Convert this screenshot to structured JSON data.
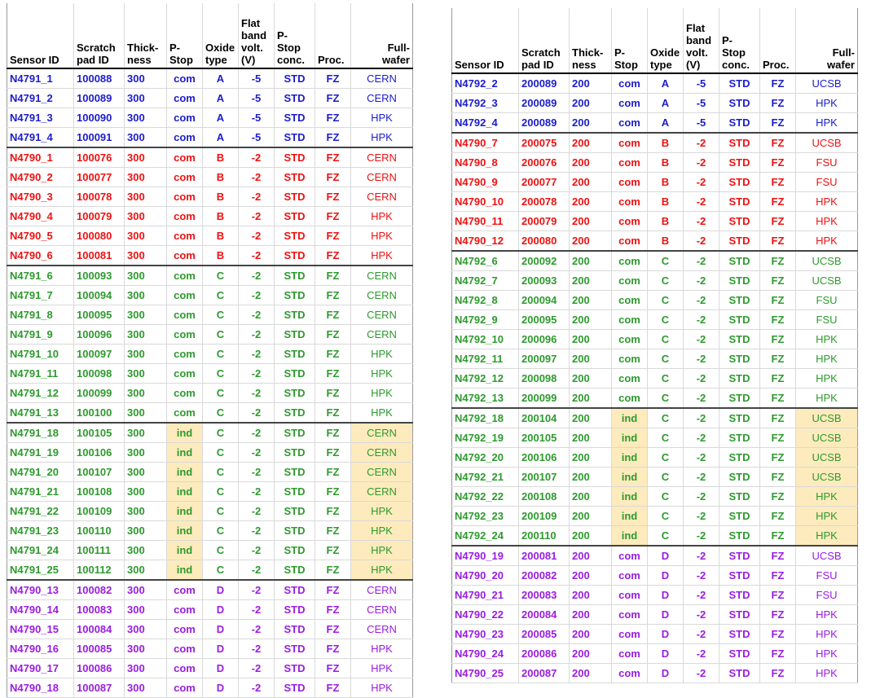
{
  "columns": [
    "Sensor ID",
    "Scratch\npad ID",
    "Thick-\nness",
    "P-\nStop",
    "Oxide\ntype",
    "Flat\nband\nvolt.\n(V)",
    "P-\nStop\nconc.",
    "Proc.",
    "Full-\nwafer"
  ],
  "colors": {
    "blue": "#1c1ccc",
    "red": "#ee1111",
    "green": "#2e9a2e",
    "purple": "#9a1de0",
    "highlight": "#fdebbd"
  },
  "tables": [
    {
      "rows": [
        {
          "g": "blue",
          "start": false,
          "hl": false,
          "c": [
            "N4791_1",
            "100088",
            "300",
            "com",
            "A",
            "-5",
            "STD",
            "FZ",
            "CERN"
          ]
        },
        {
          "g": "blue",
          "start": false,
          "hl": false,
          "c": [
            "N4791_2",
            "100089",
            "300",
            "com",
            "A",
            "-5",
            "STD",
            "FZ",
            "CERN"
          ]
        },
        {
          "g": "blue",
          "start": false,
          "hl": false,
          "c": [
            "N4791_3",
            "100090",
            "300",
            "com",
            "A",
            "-5",
            "STD",
            "FZ",
            "HPK"
          ]
        },
        {
          "g": "blue",
          "start": false,
          "hl": false,
          "c": [
            "N4791_4",
            "100091",
            "300",
            "com",
            "A",
            "-5",
            "STD",
            "FZ",
            "HPK"
          ]
        },
        {
          "g": "red",
          "start": true,
          "hl": false,
          "c": [
            "N4790_1",
            "100076",
            "300",
            "com",
            "B",
            "-2",
            "STD",
            "FZ",
            "CERN"
          ]
        },
        {
          "g": "red",
          "start": false,
          "hl": false,
          "c": [
            "N4790_2",
            "100077",
            "300",
            "com",
            "B",
            "-2",
            "STD",
            "FZ",
            "CERN"
          ]
        },
        {
          "g": "red",
          "start": false,
          "hl": false,
          "c": [
            "N4790_3",
            "100078",
            "300",
            "com",
            "B",
            "-2",
            "STD",
            "FZ",
            "CERN"
          ]
        },
        {
          "g": "red",
          "start": false,
          "hl": false,
          "c": [
            "N4790_4",
            "100079",
            "300",
            "com",
            "B",
            "-2",
            "STD",
            "FZ",
            "HPK"
          ]
        },
        {
          "g": "red",
          "start": false,
          "hl": false,
          "c": [
            "N4790_5",
            "100080",
            "300",
            "com",
            "B",
            "-2",
            "STD",
            "FZ",
            "HPK"
          ]
        },
        {
          "g": "red",
          "start": false,
          "hl": false,
          "c": [
            "N4790_6",
            "100081",
            "300",
            "com",
            "B",
            "-2",
            "STD",
            "FZ",
            "HPK"
          ]
        },
        {
          "g": "green",
          "start": true,
          "hl": false,
          "c": [
            "N4791_6",
            "100093",
            "300",
            "com",
            "C",
            "-2",
            "STD",
            "FZ",
            "CERN"
          ]
        },
        {
          "g": "green",
          "start": false,
          "hl": false,
          "c": [
            "N4791_7",
            "100094",
            "300",
            "com",
            "C",
            "-2",
            "STD",
            "FZ",
            "CERN"
          ]
        },
        {
          "g": "green",
          "start": false,
          "hl": false,
          "c": [
            "N4791_8",
            "100095",
            "300",
            "com",
            "C",
            "-2",
            "STD",
            "FZ",
            "CERN"
          ]
        },
        {
          "g": "green",
          "start": false,
          "hl": false,
          "c": [
            "N4791_9",
            "100096",
            "300",
            "com",
            "C",
            "-2",
            "STD",
            "FZ",
            "CERN"
          ]
        },
        {
          "g": "green",
          "start": false,
          "hl": false,
          "c": [
            "N4791_10",
            "100097",
            "300",
            "com",
            "C",
            "-2",
            "STD",
            "FZ",
            "HPK"
          ]
        },
        {
          "g": "green",
          "start": false,
          "hl": false,
          "c": [
            "N4791_11",
            "100098",
            "300",
            "com",
            "C",
            "-2",
            "STD",
            "FZ",
            "HPK"
          ]
        },
        {
          "g": "green",
          "start": false,
          "hl": false,
          "c": [
            "N4791_12",
            "100099",
            "300",
            "com",
            "C",
            "-2",
            "STD",
            "FZ",
            "HPK"
          ]
        },
        {
          "g": "green",
          "start": false,
          "hl": false,
          "c": [
            "N4791_13",
            "100100",
            "300",
            "com",
            "C",
            "-2",
            "STD",
            "FZ",
            "HPK"
          ]
        },
        {
          "g": "green",
          "start": true,
          "hl": true,
          "c": [
            "N4791_18",
            "100105",
            "300",
            "ind",
            "C",
            "-2",
            "STD",
            "FZ",
            "CERN"
          ]
        },
        {
          "g": "green",
          "start": false,
          "hl": true,
          "c": [
            "N4791_19",
            "100106",
            "300",
            "ind",
            "C",
            "-2",
            "STD",
            "FZ",
            "CERN"
          ]
        },
        {
          "g": "green",
          "start": false,
          "hl": true,
          "c": [
            "N4791_20",
            "100107",
            "300",
            "ind",
            "C",
            "-2",
            "STD",
            "FZ",
            "CERN"
          ]
        },
        {
          "g": "green",
          "start": false,
          "hl": true,
          "c": [
            "N4791_21",
            "100108",
            "300",
            "ind",
            "C",
            "-2",
            "STD",
            "FZ",
            "CERN"
          ]
        },
        {
          "g": "green",
          "start": false,
          "hl": true,
          "c": [
            "N4791_22",
            "100109",
            "300",
            "ind",
            "C",
            "-2",
            "STD",
            "FZ",
            "HPK"
          ]
        },
        {
          "g": "green",
          "start": false,
          "hl": true,
          "c": [
            "N4791_23",
            "100110",
            "300",
            "ind",
            "C",
            "-2",
            "STD",
            "FZ",
            "HPK"
          ]
        },
        {
          "g": "green",
          "start": false,
          "hl": true,
          "c": [
            "N4791_24",
            "100111",
            "300",
            "ind",
            "C",
            "-2",
            "STD",
            "FZ",
            "HPK"
          ]
        },
        {
          "g": "green",
          "start": false,
          "hl": true,
          "c": [
            "N4791_25",
            "100112",
            "300",
            "ind",
            "C",
            "-2",
            "STD",
            "FZ",
            "HPK"
          ]
        },
        {
          "g": "purple",
          "start": true,
          "hl": false,
          "c": [
            "N4790_13",
            "100082",
            "300",
            "com",
            "D",
            "-2",
            "STD",
            "FZ",
            "CERN"
          ]
        },
        {
          "g": "purple",
          "start": false,
          "hl": false,
          "c": [
            "N4790_14",
            "100083",
            "300",
            "com",
            "D",
            "-2",
            "STD",
            "FZ",
            "CERN"
          ]
        },
        {
          "g": "purple",
          "start": false,
          "hl": false,
          "c": [
            "N4790_15",
            "100084",
            "300",
            "com",
            "D",
            "-2",
            "STD",
            "FZ",
            "CERN"
          ]
        },
        {
          "g": "purple",
          "start": false,
          "hl": false,
          "c": [
            "N4790_16",
            "100085",
            "300",
            "com",
            "D",
            "-2",
            "STD",
            "FZ",
            "HPK"
          ]
        },
        {
          "g": "purple",
          "start": false,
          "hl": false,
          "c": [
            "N4790_17",
            "100086",
            "300",
            "com",
            "D",
            "-2",
            "STD",
            "FZ",
            "HPK"
          ]
        },
        {
          "g": "purple",
          "start": false,
          "hl": false,
          "c": [
            "N4790_18",
            "100087",
            "300",
            "com",
            "D",
            "-2",
            "STD",
            "FZ",
            "HPK"
          ]
        }
      ]
    },
    {
      "rows": [
        {
          "g": "blue",
          "start": false,
          "hl": false,
          "c": [
            "N4792_2",
            "200089",
            "200",
            "com",
            "A",
            "-5",
            "STD",
            "FZ",
            "UCSB"
          ]
        },
        {
          "g": "blue",
          "start": false,
          "hl": false,
          "c": [
            "N4792_3",
            "200089",
            "200",
            "com",
            "A",
            "-5",
            "STD",
            "FZ",
            "HPK"
          ]
        },
        {
          "g": "blue",
          "start": false,
          "hl": false,
          "c": [
            "N4792_4",
            "200089",
            "200",
            "com",
            "A",
            "-5",
            "STD",
            "FZ",
            "HPK"
          ]
        },
        {
          "g": "red",
          "start": true,
          "hl": false,
          "c": [
            "N4790_7",
            "200075",
            "200",
            "com",
            "B",
            "-2",
            "STD",
            "FZ",
            "UCSB"
          ]
        },
        {
          "g": "red",
          "start": false,
          "hl": false,
          "c": [
            "N4790_8",
            "200076",
            "200",
            "com",
            "B",
            "-2",
            "STD",
            "FZ",
            "FSU"
          ]
        },
        {
          "g": "red",
          "start": false,
          "hl": false,
          "c": [
            "N4790_9",
            "200077",
            "200",
            "com",
            "B",
            "-2",
            "STD",
            "FZ",
            "FSU"
          ]
        },
        {
          "g": "red",
          "start": false,
          "hl": false,
          "c": [
            "N4790_10",
            "200078",
            "200",
            "com",
            "B",
            "-2",
            "STD",
            "FZ",
            "HPK"
          ]
        },
        {
          "g": "red",
          "start": false,
          "hl": false,
          "c": [
            "N4790_11",
            "200079",
            "200",
            "com",
            "B",
            "-2",
            "STD",
            "FZ",
            "HPK"
          ]
        },
        {
          "g": "red",
          "start": false,
          "hl": false,
          "c": [
            "N4790_12",
            "200080",
            "200",
            "com",
            "B",
            "-2",
            "STD",
            "FZ",
            "HPK"
          ]
        },
        {
          "g": "green",
          "start": true,
          "hl": false,
          "c": [
            "N4792_6",
            "200092",
            "200",
            "com",
            "C",
            "-2",
            "STD",
            "FZ",
            "UCSB"
          ]
        },
        {
          "g": "green",
          "start": false,
          "hl": false,
          "c": [
            "N4792_7",
            "200093",
            "200",
            "com",
            "C",
            "-2",
            "STD",
            "FZ",
            "UCSB"
          ]
        },
        {
          "g": "green",
          "start": false,
          "hl": false,
          "c": [
            "N4792_8",
            "200094",
            "200",
            "com",
            "C",
            "-2",
            "STD",
            "FZ",
            "FSU"
          ]
        },
        {
          "g": "green",
          "start": false,
          "hl": false,
          "c": [
            "N4792_9",
            "200095",
            "200",
            "com",
            "C",
            "-2",
            "STD",
            "FZ",
            "FSU"
          ]
        },
        {
          "g": "green",
          "start": false,
          "hl": false,
          "c": [
            "N4792_10",
            "200096",
            "200",
            "com",
            "C",
            "-2",
            "STD",
            "FZ",
            "HPK"
          ]
        },
        {
          "g": "green",
          "start": false,
          "hl": false,
          "c": [
            "N4792_11",
            "200097",
            "200",
            "com",
            "C",
            "-2",
            "STD",
            "FZ",
            "HPK"
          ]
        },
        {
          "g": "green",
          "start": false,
          "hl": false,
          "c": [
            "N4792_12",
            "200098",
            "200",
            "com",
            "C",
            "-2",
            "STD",
            "FZ",
            "HPK"
          ]
        },
        {
          "g": "green",
          "start": false,
          "hl": false,
          "c": [
            "N4792_13",
            "200099",
            "200",
            "com",
            "C",
            "-2",
            "STD",
            "FZ",
            "HPK"
          ]
        },
        {
          "g": "green",
          "start": true,
          "hl": true,
          "c": [
            "N4792_18",
            "200104",
            "200",
            "ind",
            "C",
            "-2",
            "STD",
            "FZ",
            "UCSB"
          ]
        },
        {
          "g": "green",
          "start": false,
          "hl": true,
          "c": [
            "N4792_19",
            "200105",
            "200",
            "ind",
            "C",
            "-2",
            "STD",
            "FZ",
            "UCSB"
          ]
        },
        {
          "g": "green",
          "start": false,
          "hl": true,
          "c": [
            "N4792_20",
            "200106",
            "200",
            "ind",
            "C",
            "-2",
            "STD",
            "FZ",
            "UCSB"
          ]
        },
        {
          "g": "green",
          "start": false,
          "hl": true,
          "c": [
            "N4792_21",
            "200107",
            "200",
            "ind",
            "C",
            "-2",
            "STD",
            "FZ",
            "UCSB"
          ]
        },
        {
          "g": "green",
          "start": false,
          "hl": true,
          "c": [
            "N4792_22",
            "200108",
            "200",
            "ind",
            "C",
            "-2",
            "STD",
            "FZ",
            "HPK"
          ]
        },
        {
          "g": "green",
          "start": false,
          "hl": true,
          "c": [
            "N4792_23",
            "200109",
            "200",
            "ind",
            "C",
            "-2",
            "STD",
            "FZ",
            "HPK"
          ]
        },
        {
          "g": "green",
          "start": false,
          "hl": true,
          "c": [
            "N4792_24",
            "200110",
            "200",
            "ind",
            "C",
            "-2",
            "STD",
            "FZ",
            "HPK"
          ]
        },
        {
          "g": "purple",
          "start": true,
          "hl": false,
          "c": [
            "N4790_19",
            "200081",
            "200",
            "com",
            "D",
            "-2",
            "STD",
            "FZ",
            "UCSB"
          ]
        },
        {
          "g": "purple",
          "start": false,
          "hl": false,
          "c": [
            "N4790_20",
            "200082",
            "200",
            "com",
            "D",
            "-2",
            "STD",
            "FZ",
            "FSU"
          ]
        },
        {
          "g": "purple",
          "start": false,
          "hl": false,
          "c": [
            "N4790_21",
            "200083",
            "200",
            "com",
            "D",
            "-2",
            "STD",
            "FZ",
            "FSU"
          ]
        },
        {
          "g": "purple",
          "start": false,
          "hl": false,
          "c": [
            "N4790_22",
            "200084",
            "200",
            "com",
            "D",
            "-2",
            "STD",
            "FZ",
            "HPK"
          ]
        },
        {
          "g": "purple",
          "start": false,
          "hl": false,
          "c": [
            "N4790_23",
            "200085",
            "200",
            "com",
            "D",
            "-2",
            "STD",
            "FZ",
            "HPK"
          ]
        },
        {
          "g": "purple",
          "start": false,
          "hl": false,
          "c": [
            "N4790_24",
            "200086",
            "200",
            "com",
            "D",
            "-2",
            "STD",
            "FZ",
            "HPK"
          ]
        },
        {
          "g": "purple",
          "start": false,
          "hl": false,
          "c": [
            "N4790_25",
            "200087",
            "200",
            "com",
            "D",
            "-2",
            "STD",
            "FZ",
            "HPK"
          ]
        }
      ]
    }
  ]
}
